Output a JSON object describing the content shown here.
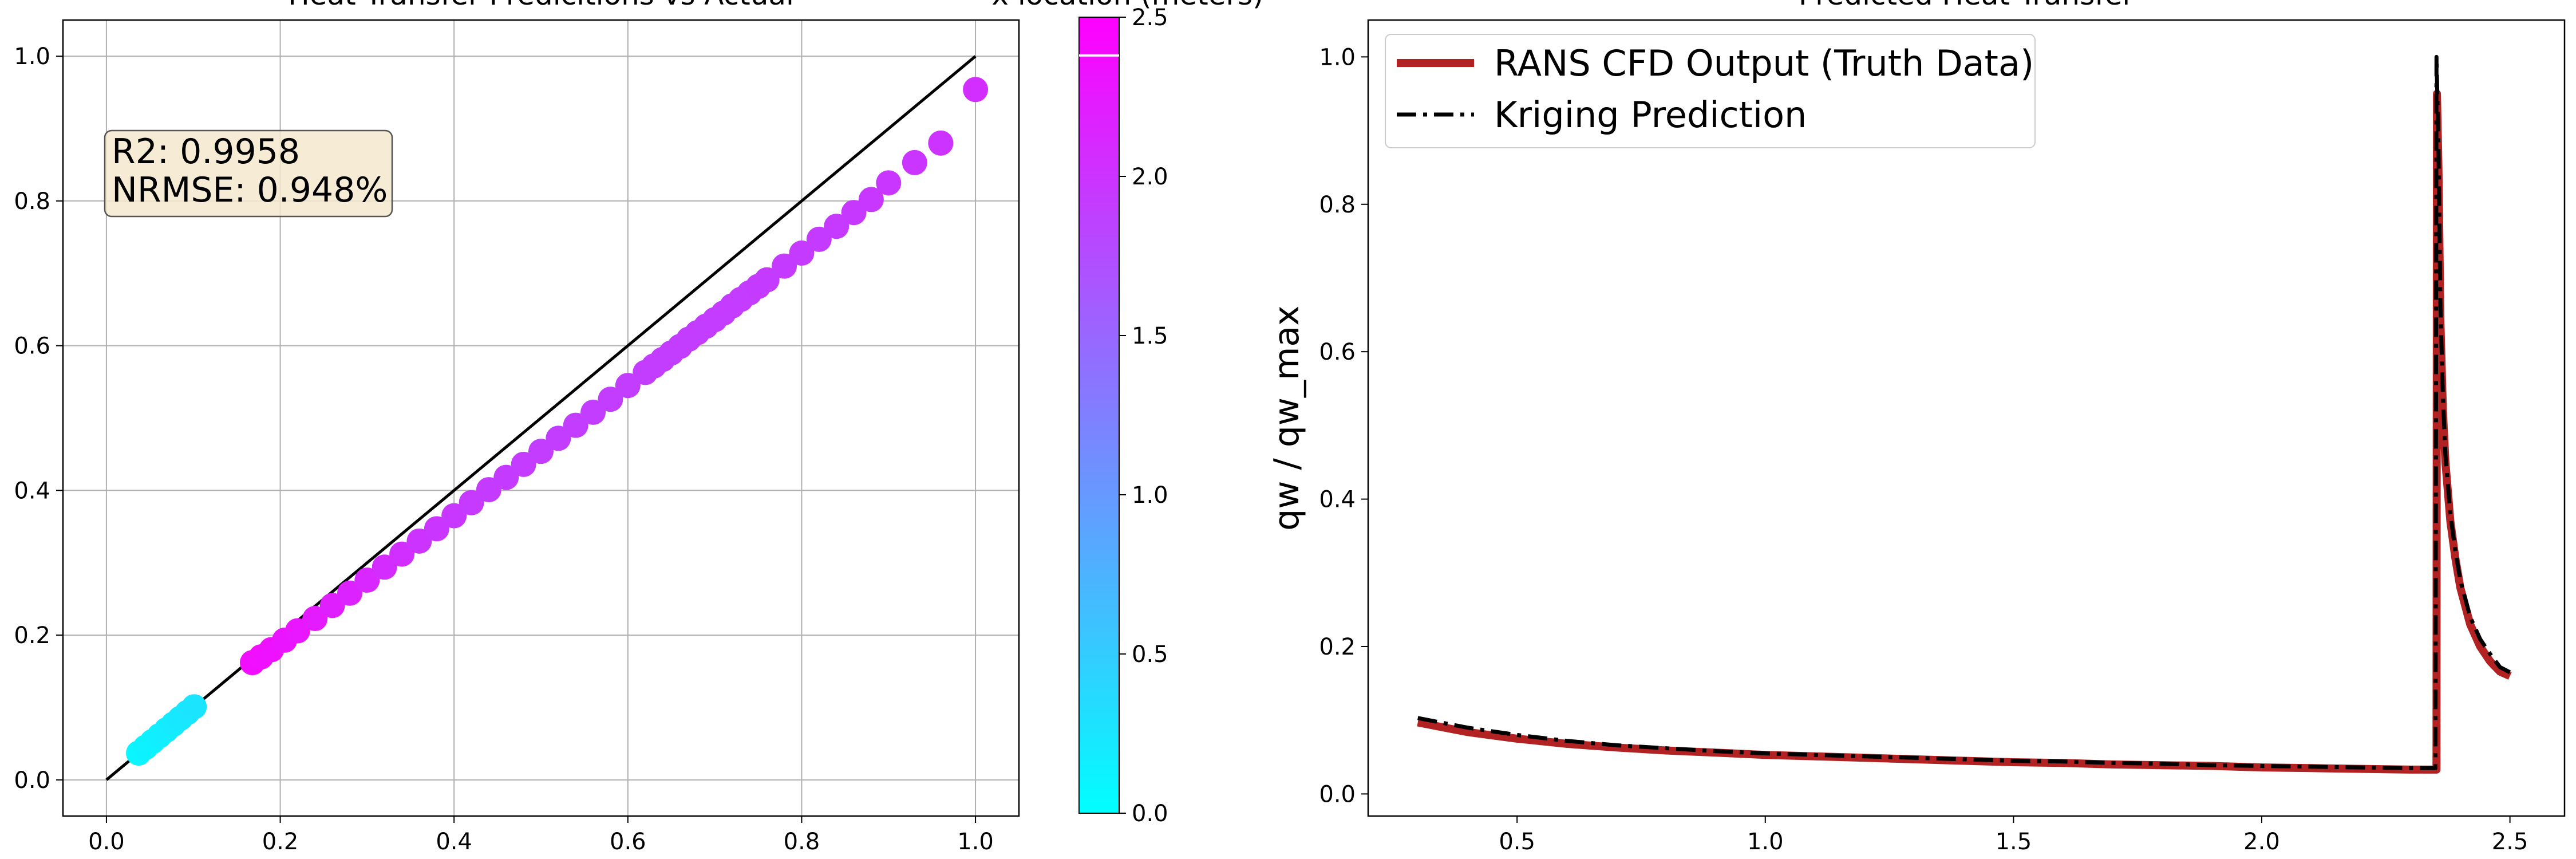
{
  "chart_data": [
    {
      "type": "scatter",
      "title": "Heat Transfer Predicitions vs Actual",
      "xlabel": "",
      "ylabel": "",
      "xlim": [
        -0.05,
        1.05
      ],
      "ylim": [
        -0.05,
        1.05
      ],
      "x_ticks": [
        "0.0",
        "0.2",
        "0.4",
        "0.6",
        "0.8",
        "1.0"
      ],
      "y_ticks": [
        "0.0",
        "0.2",
        "0.4",
        "0.6",
        "0.8",
        "1.0"
      ],
      "grid": true,
      "annotation": {
        "r2": "R2: 0.9958",
        "nrmse": "NRMSE: 0.948%"
      },
      "reference_line": {
        "x": [
          0,
          1
        ],
        "y": [
          0,
          1
        ],
        "color": "#000000"
      },
      "colorbar": {
        "label": "x location (meters)",
        "range": [
          0,
          2.5
        ],
        "ticks": [
          "0.0",
          "0.5",
          "1.0",
          "1.5",
          "2.0",
          "2.5"
        ],
        "colormap": "cool",
        "color_low": "#00ffff",
        "color_high": "#ff00ff",
        "marker_value": 2.38
      },
      "series": [
        {
          "segment": "upstream",
          "x": [
            0.037,
            0.045,
            0.053,
            0.061,
            0.069,
            0.077,
            0.085,
            0.093,
            0.101
          ],
          "y": [
            0.037,
            0.045,
            0.053,
            0.061,
            0.069,
            0.077,
            0.085,
            0.093,
            0.101
          ],
          "location_m": [
            0.1,
            0.12,
            0.14,
            0.16,
            0.18,
            0.2,
            0.22,
            0.24,
            0.26
          ]
        },
        {
          "segment": "mid",
          "x": [
            0.168,
            0.178,
            0.19,
            0.205,
            0.22,
            0.24,
            0.26,
            0.28,
            0.3,
            0.32,
            0.34,
            0.36,
            0.38,
            0.4,
            0.42,
            0.44,
            0.46,
            0.48,
            0.5,
            0.52,
            0.54,
            0.56,
            0.58,
            0.6,
            0.62,
            0.63,
            0.64,
            0.65,
            0.66,
            0.67,
            0.68,
            0.69,
            0.7,
            0.71,
            0.72,
            0.73,
            0.74,
            0.75,
            0.76,
            0.78,
            0.8,
            0.82,
            0.84,
            0.86,
            0.88,
            0.9,
            0.93,
            0.96,
            1.0
          ],
          "y": [
            0.162,
            0.17,
            0.18,
            0.193,
            0.206,
            0.223,
            0.241,
            0.258,
            0.276,
            0.294,
            0.312,
            0.33,
            0.347,
            0.365,
            0.383,
            0.401,
            0.418,
            0.436,
            0.454,
            0.472,
            0.49,
            0.508,
            0.526,
            0.545,
            0.563,
            0.572,
            0.581,
            0.59,
            0.599,
            0.609,
            0.618,
            0.627,
            0.636,
            0.645,
            0.655,
            0.664,
            0.673,
            0.682,
            0.691,
            0.71,
            0.728,
            0.747,
            0.765,
            0.784,
            0.802,
            0.825,
            0.853,
            0.88,
            0.954
          ],
          "location_m": [
            2.36,
            2.35,
            2.33,
            2.3,
            2.27,
            2.24,
            2.2,
            2.16,
            2.12,
            2.08,
            2.04,
            2.0,
            1.98,
            1.96,
            1.94,
            1.93,
            1.92,
            1.91,
            1.9,
            1.9,
            1.9,
            1.9,
            1.9,
            1.9,
            1.9,
            1.9,
            1.9,
            1.9,
            1.9,
            1.9,
            1.9,
            1.9,
            1.91,
            1.91,
            1.91,
            1.91,
            1.91,
            1.92,
            1.92,
            1.92,
            1.93,
            1.93,
            1.94,
            1.95,
            1.96,
            1.97,
            1.98,
            2.0,
            2.05
          ]
        }
      ]
    },
    {
      "type": "line",
      "title": "Predicted Heat Transfer",
      "xlabel": "",
      "ylabel": "qw / qw_max",
      "xlim": [
        0.2,
        2.61
      ],
      "ylim": [
        -0.03,
        1.05
      ],
      "x_ticks": [
        "0.5",
        "1.0",
        "1.5",
        "2.0",
        "2.5"
      ],
      "y_ticks": [
        "0.0",
        "0.2",
        "0.4",
        "0.6",
        "0.8",
        "1.0"
      ],
      "grid": false,
      "legend_position": "top-left",
      "series": [
        {
          "name": "RANS CFD Output (Truth Data)",
          "color": "#b22222",
          "style": "solid",
          "x": [
            0.3,
            0.4,
            0.5,
            0.6,
            0.7,
            0.8,
            0.9,
            1.0,
            1.1,
            1.2,
            1.3,
            1.4,
            1.5,
            1.6,
            1.7,
            1.8,
            1.9,
            2.0,
            2.1,
            2.2,
            2.3,
            2.352,
            2.353,
            2.356,
            2.36,
            2.365,
            2.37,
            2.38,
            2.39,
            2.4,
            2.42,
            2.44,
            2.46,
            2.48,
            2.5
          ],
          "y": [
            0.097,
            0.084,
            0.075,
            0.068,
            0.063,
            0.059,
            0.056,
            0.053,
            0.051,
            0.049,
            0.047,
            0.045,
            0.043,
            0.042,
            0.04,
            0.039,
            0.038,
            0.036,
            0.035,
            0.034,
            0.033,
            0.033,
            0.95,
            0.85,
            0.64,
            0.52,
            0.45,
            0.37,
            0.32,
            0.28,
            0.23,
            0.2,
            0.18,
            0.166,
            0.16
          ]
        },
        {
          "name": "Kriging Prediction",
          "color": "#000000",
          "style": "dashdot",
          "x": [
            0.3,
            0.4,
            0.5,
            0.6,
            0.7,
            0.8,
            0.9,
            1.0,
            1.1,
            1.2,
            1.3,
            1.4,
            1.5,
            1.6,
            1.7,
            1.8,
            1.9,
            2.0,
            2.1,
            2.2,
            2.3,
            2.35,
            2.352,
            2.356,
            2.36,
            2.365,
            2.37,
            2.38,
            2.39,
            2.4,
            2.42,
            2.44,
            2.46,
            2.48,
            2.5
          ],
          "y": [
            0.103,
            0.09,
            0.08,
            0.072,
            0.066,
            0.062,
            0.058,
            0.055,
            0.053,
            0.051,
            0.049,
            0.047,
            0.045,
            0.044,
            0.042,
            0.041,
            0.039,
            0.038,
            0.037,
            0.036,
            0.035,
            0.035,
            1.0,
            0.88,
            0.66,
            0.54,
            0.46,
            0.38,
            0.33,
            0.29,
            0.24,
            0.21,
            0.19,
            0.172,
            0.165
          ]
        }
      ]
    }
  ]
}
